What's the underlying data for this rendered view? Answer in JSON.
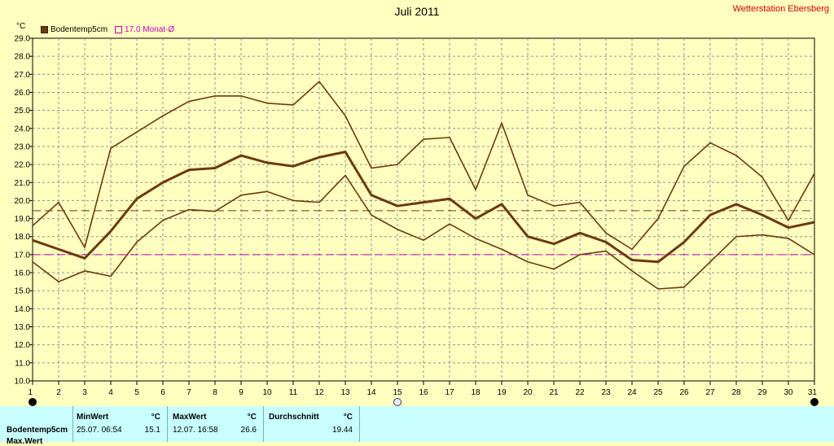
{
  "header": {
    "title": "Juli 2011",
    "station": "Wetterstation Ebersberg",
    "unit": "°C"
  },
  "legend": {
    "series_label": "Bodentemp5cm",
    "avg_label": "17.0 Monat-Ø"
  },
  "colors": {
    "background": "#ffffc0",
    "plot": "#ffffc0",
    "grid": "#909090",
    "series": "#6b3a10",
    "avg_line": "#c000c0",
    "mean_line": "#6b3a10",
    "table_bg": "#c8ffff"
  },
  "chart_data": {
    "type": "line",
    "x": [
      1,
      2,
      3,
      4,
      5,
      6,
      7,
      8,
      9,
      10,
      11,
      12,
      13,
      14,
      15,
      16,
      17,
      18,
      19,
      20,
      21,
      22,
      23,
      24,
      25,
      26,
      27,
      28,
      29,
      30,
      31
    ],
    "xlim": [
      1,
      31
    ],
    "ylim": [
      10,
      29
    ],
    "yticks": [
      "10.0",
      "11.0",
      "12.0",
      "13.0",
      "14.0",
      "15.0",
      "16.0",
      "17.0",
      "18.0",
      "19.0",
      "20.0",
      "21.0",
      "22.0",
      "23.0",
      "24.0",
      "25.0",
      "26.0",
      "27.0",
      "28.0",
      "29.0"
    ],
    "xticks": [
      "1",
      "2",
      "3",
      "4",
      "5",
      "6",
      "7",
      "8",
      "9",
      "10",
      "11",
      "12",
      "13",
      "14",
      "15",
      "16",
      "17",
      "18",
      "19",
      "20",
      "21",
      "22",
      "23",
      "24",
      "25",
      "26",
      "27",
      "28",
      "29",
      "30",
      "31"
    ],
    "grid": true,
    "series": [
      {
        "name": "Bodentemp5cm",
        "role": "max",
        "values": [
          18.6,
          19.9,
          17.4,
          22.9,
          23.8,
          24.7,
          25.5,
          25.8,
          25.8,
          25.4,
          25.3,
          26.6,
          24.7,
          21.8,
          22.0,
          23.4,
          23.5,
          20.6,
          24.3,
          20.3,
          19.7,
          19.9,
          18.2,
          17.3,
          19.0,
          21.9,
          23.2,
          22.5,
          21.3,
          18.9,
          21.5
        ]
      },
      {
        "name": "Bodentemp5cm",
        "role": "mean",
        "values": [
          17.8,
          17.3,
          16.8,
          18.3,
          20.1,
          21.0,
          21.7,
          21.8,
          22.5,
          22.1,
          21.9,
          22.4,
          22.7,
          20.3,
          19.7,
          19.9,
          20.1,
          19.0,
          19.8,
          18.0,
          17.6,
          18.2,
          17.7,
          16.7,
          16.6,
          17.7,
          19.2,
          19.8,
          19.2,
          18.5,
          18.8
        ]
      },
      {
        "name": "Bodentemp5cm",
        "role": "min",
        "values": [
          16.6,
          15.5,
          16.1,
          15.8,
          17.7,
          18.9,
          19.5,
          19.4,
          20.3,
          20.5,
          20.0,
          19.9,
          21.4,
          19.2,
          18.4,
          17.8,
          18.7,
          17.9,
          17.3,
          16.6,
          16.2,
          17.0,
          17.2,
          16.1,
          15.1,
          15.2,
          16.6,
          18.0,
          18.1,
          17.9,
          17.0
        ]
      }
    ],
    "reference_lines": [
      {
        "label": "17.0 Monat-Ø",
        "value": 17.0,
        "color": "#c000c0"
      },
      {
        "label": "Durchschnitt",
        "value": 19.44,
        "color": "#6b3a10"
      }
    ],
    "markers": [
      1,
      15,
      31
    ]
  },
  "stats": {
    "row_label": "Bodentemp5cm",
    "row2_label": "Max.Wert",
    "min": {
      "header": "MinWert",
      "unit": "°C",
      "date": "25.07.  06:54",
      "value": "15.1"
    },
    "max": {
      "header": "MaxWert",
      "unit": "°C",
      "date": "12.07.  16:58",
      "value": "26.6"
    },
    "avg": {
      "header": "Durchschnitt",
      "unit": "°C",
      "value": "19.44"
    }
  }
}
